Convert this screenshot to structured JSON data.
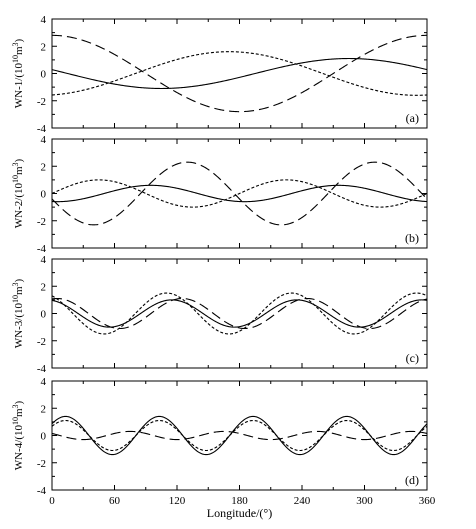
{
  "chart_data": [
    {
      "type": "line",
      "panel_label": "(a)",
      "ylabel": "WN-1/(10",
      "ylabel_exp1": "10",
      "ylabel_unit": "m",
      "ylabel_exp2": "3",
      "xlim": [
        0,
        360
      ],
      "ylim": [
        -4,
        4
      ],
      "yticks": [
        "4",
        "2",
        "0",
        "-2",
        "-4"
      ],
      "series": [
        {
          "style": "solid",
          "amplitude": 1.1,
          "wavenumber": 1,
          "peak_longitude": 285
        },
        {
          "style": "short-dash",
          "amplitude": 1.6,
          "wavenumber": 1,
          "peak_longitude": 170
        },
        {
          "style": "long-dash",
          "amplitude": 2.8,
          "wavenumber": 1,
          "peak_longitude": 0
        }
      ]
    },
    {
      "type": "line",
      "panel_label": "(b)",
      "ylabel": "WN-2/(10",
      "ylabel_exp1": "10",
      "ylabel_unit": "m",
      "ylabel_exp2": "3",
      "xlim": [
        0,
        360
      ],
      "ylim": [
        -4,
        4
      ],
      "yticks": [
        "4",
        "2",
        "0",
        "-2",
        "-4"
      ],
      "series": [
        {
          "style": "solid",
          "amplitude": 0.6,
          "wavenumber": 2,
          "peak_longitude": 95
        },
        {
          "style": "short-dash",
          "amplitude": 1.0,
          "wavenumber": 2,
          "peak_longitude": 45
        },
        {
          "style": "long-dash",
          "amplitude": 2.3,
          "wavenumber": 2,
          "peak_longitude": 130
        }
      ]
    },
    {
      "type": "line",
      "panel_label": "(c)",
      "ylabel": "WN-3/(10",
      "ylabel_exp1": "10",
      "ylabel_unit": "m",
      "ylabel_exp2": "3",
      "xlim": [
        0,
        360
      ],
      "ylim": [
        -4,
        4
      ],
      "yticks": [
        "4",
        "2",
        "0",
        "-2",
        "-4"
      ],
      "series": [
        {
          "style": "solid",
          "amplitude": 1.0,
          "wavenumber": 3,
          "peak_longitude": 115
        },
        {
          "style": "short-dash",
          "amplitude": 1.5,
          "wavenumber": 3,
          "peak_longitude": 110
        },
        {
          "style": "long-dash",
          "amplitude": 1.1,
          "wavenumber": 3,
          "peak_longitude": 125
        }
      ]
    },
    {
      "type": "line",
      "panel_label": "(d)",
      "ylabel": "WN-4/(10",
      "ylabel_exp1": "10",
      "ylabel_unit": "m",
      "ylabel_exp2": "3",
      "xlim": [
        0,
        360
      ],
      "ylim": [
        -4,
        4
      ],
      "yticks": [
        "4",
        "2",
        "0",
        "-2",
        "-4"
      ],
      "xticks": [
        "0",
        "60",
        "120",
        "180",
        "240",
        "300",
        "360"
      ],
      "xlabel": "Longitude/(°)",
      "series": [
        {
          "style": "solid",
          "amplitude": 1.4,
          "wavenumber": 4,
          "peak_longitude": 103
        },
        {
          "style": "short-dash",
          "amplitude": 1.1,
          "wavenumber": 4,
          "peak_longitude": 103
        },
        {
          "style": "long-dash",
          "amplitude": 0.3,
          "wavenumber": 4,
          "peak_longitude": 75
        }
      ]
    }
  ]
}
